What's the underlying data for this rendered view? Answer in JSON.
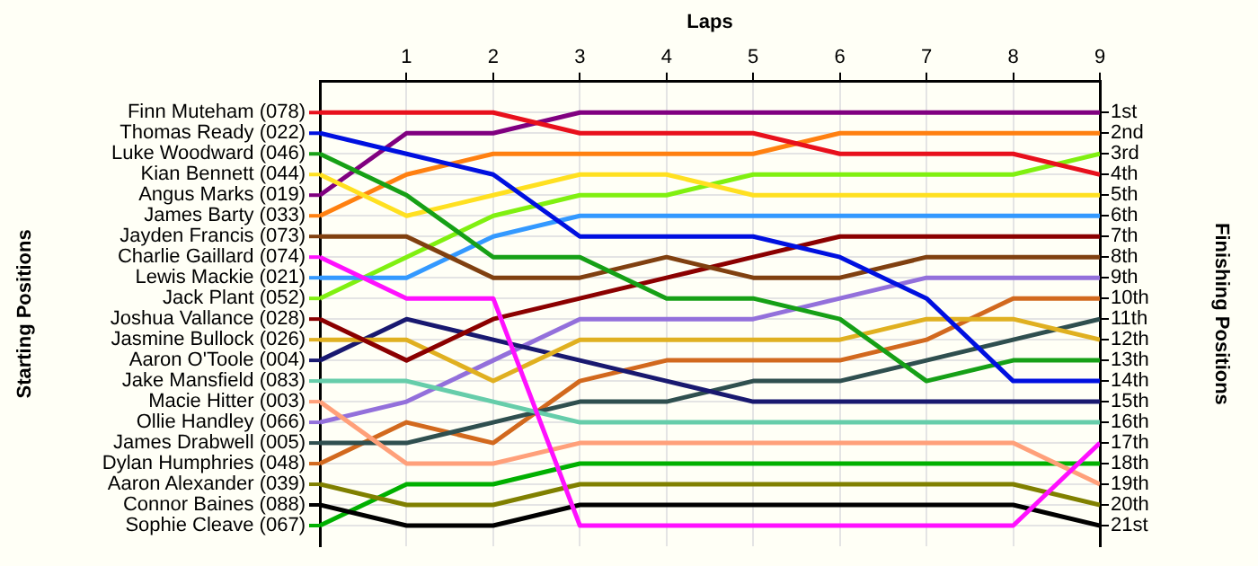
{
  "chart_data": {
    "type": "line",
    "xlabel": "Laps",
    "annotations": [
      "Starting Positions"
    ],
    "y2label": "Finishing Positions",
    "x": [
      0,
      1,
      2,
      3,
      4,
      5,
      6,
      7,
      8,
      9
    ],
    "xlim": [
      0,
      9
    ],
    "xticks": [
      1,
      2,
      3,
      4,
      5,
      6,
      7,
      8,
      9
    ],
    "y2lim": [
      22,
      -0.5
    ],
    "y2ticks": [
      {
        "value": 1,
        "label": "1st"
      },
      {
        "value": 2,
        "label": "2nd"
      },
      {
        "value": 3,
        "label": "3rd"
      },
      {
        "value": 4,
        "label": "4th"
      },
      {
        "value": 5,
        "label": "5th"
      },
      {
        "value": 6,
        "label": "6th"
      },
      {
        "value": 7,
        "label": "7th"
      },
      {
        "value": 8,
        "label": "8th"
      },
      {
        "value": 9,
        "label": "9th"
      },
      {
        "value": 10,
        "label": "10th"
      },
      {
        "value": 11,
        "label": "11th"
      },
      {
        "value": 12,
        "label": "12th"
      },
      {
        "value": 13,
        "label": "13th"
      },
      {
        "value": 14,
        "label": "14th"
      },
      {
        "value": 15,
        "label": "15th"
      },
      {
        "value": 16,
        "label": "16th"
      },
      {
        "value": 17,
        "label": "17th"
      },
      {
        "value": 18,
        "label": "18th"
      },
      {
        "value": 19,
        "label": "19th"
      },
      {
        "value": 20,
        "label": "20th"
      },
      {
        "value": 21,
        "label": "21st"
      }
    ],
    "grid": true,
    "legend": "left",
    "series": [
      {
        "name": "Finn Muteham (078)",
        "axis": "y2",
        "color": "#e8101c",
        "values": [
          1,
          1,
          1,
          2,
          2,
          2,
          3,
          3,
          3,
          4
        ]
      },
      {
        "name": "Thomas Ready (022)",
        "axis": "y2",
        "color": "#0010e0",
        "values": [
          2,
          3,
          4,
          7,
          7,
          7,
          8,
          10,
          14,
          14
        ]
      },
      {
        "name": "Luke Woodward (046)",
        "axis": "y2",
        "color": "#16a016",
        "values": [
          3,
          5,
          8,
          8,
          10,
          10,
          11,
          14,
          13,
          13
        ]
      },
      {
        "name": "Kian Bennett (044)",
        "axis": "y2",
        "color": "#ffe020",
        "values": [
          4,
          6,
          5,
          4,
          4,
          5,
          5,
          5,
          5,
          5
        ]
      },
      {
        "name": "Angus Marks (019)",
        "axis": "y2",
        "color": "#800080",
        "values": [
          5,
          2,
          2,
          1,
          1,
          1,
          1,
          1,
          1,
          1
        ]
      },
      {
        "name": "James Barty (033)",
        "axis": "y2",
        "color": "#ff8010",
        "values": [
          6,
          4,
          3,
          3,
          3,
          3,
          2,
          2,
          2,
          2
        ]
      },
      {
        "name": "Jayden Francis (073)",
        "axis": "y2",
        "color": "#804010",
        "values": [
          7,
          7,
          9,
          9,
          8,
          9,
          9,
          8,
          8,
          8
        ]
      },
      {
        "name": "Charlie Gaillard (074)",
        "axis": "y2",
        "color": "#ff10ff",
        "values": [
          8,
          10,
          10,
          21,
          21,
          21,
          21,
          21,
          21,
          17
        ]
      },
      {
        "name": "Lewis Mackie (021)",
        "axis": "y2",
        "color": "#3399ff",
        "values": [
          9,
          9,
          7,
          6,
          6,
          6,
          6,
          6,
          6,
          6
        ]
      },
      {
        "name": "Jack Plant (052)",
        "axis": "y2",
        "color": "#80f010",
        "values": [
          10,
          8,
          6,
          5,
          5,
          4,
          4,
          4,
          4,
          3
        ]
      },
      {
        "name": "Joshua Vallance (028)",
        "axis": "y2",
        "color": "#8b0000",
        "values": [
          11,
          13,
          11,
          10,
          9,
          8,
          7,
          7,
          7,
          7
        ]
      },
      {
        "name": "Jasmine Bullock (026)",
        "axis": "y2",
        "color": "#e0b020",
        "values": [
          12,
          12,
          14,
          12,
          12,
          12,
          12,
          11,
          11,
          12
        ]
      },
      {
        "name": "Aaron O'Toole (004)",
        "axis": "y2",
        "color": "#191970",
        "values": [
          13,
          11,
          12,
          13,
          14,
          15,
          15,
          15,
          15,
          15
        ]
      },
      {
        "name": "Jake Mansfield (083)",
        "axis": "y2",
        "color": "#66cdaa",
        "values": [
          14,
          14,
          15,
          16,
          16,
          16,
          16,
          16,
          16,
          16
        ]
      },
      {
        "name": "Macie Hitter (003)",
        "axis": "y2",
        "color": "#ffa07a",
        "values": [
          15,
          18,
          18,
          17,
          17,
          17,
          17,
          17,
          17,
          19
        ]
      },
      {
        "name": "Ollie Handley (066)",
        "axis": "y2",
        "color": "#9370db",
        "values": [
          16,
          15,
          13,
          11,
          11,
          11,
          10,
          9,
          9,
          9
        ]
      },
      {
        "name": "James Drabwell (005)",
        "axis": "y2",
        "color": "#2f4f4f",
        "values": [
          17,
          17,
          16,
          15,
          15,
          14,
          14,
          13,
          12,
          11
        ]
      },
      {
        "name": "Dylan Humphries (048)",
        "axis": "y2",
        "color": "#d2691e",
        "values": [
          18,
          16,
          17,
          14,
          13,
          13,
          13,
          12,
          10,
          10
        ]
      },
      {
        "name": "Aaron Alexander (039)",
        "axis": "y2",
        "color": "#808000",
        "values": [
          19,
          20,
          20,
          19,
          19,
          19,
          19,
          19,
          19,
          20
        ]
      },
      {
        "name": "Connor Baines (088)",
        "axis": "y2",
        "color": "#000000",
        "values": [
          20,
          21,
          21,
          20,
          20,
          20,
          20,
          20,
          20,
          21
        ]
      },
      {
        "name": "Sophie Cleave (067)",
        "axis": "y2",
        "color": "#00b000",
        "values": [
          21,
          19,
          19,
          18,
          18,
          18,
          18,
          18,
          18,
          18
        ]
      }
    ]
  }
}
